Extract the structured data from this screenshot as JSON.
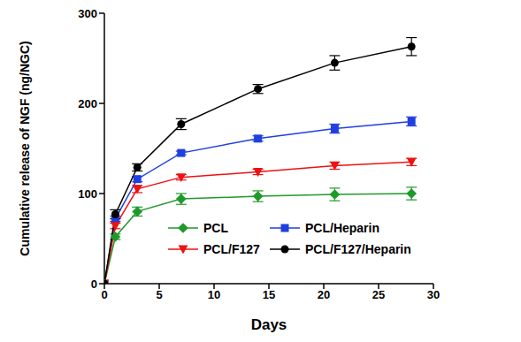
{
  "chart_data": {
    "type": "line",
    "x_label": "Days",
    "y_label": "Cumulative release of NGF (ng/NGC)",
    "x": [
      0,
      1,
      3,
      7,
      14,
      21,
      28
    ],
    "xlim": [
      0,
      30
    ],
    "xticks": [
      0,
      5,
      10,
      15,
      20,
      25,
      30
    ],
    "ylim": [
      0,
      300
    ],
    "yticks": [
      0,
      100,
      200,
      300
    ],
    "legend": "lower right",
    "series": [
      {
        "name": "PCL",
        "color": "#1f9a2a",
        "marker": "diamond",
        "values": [
          0,
          52,
          80,
          94,
          97,
          99,
          100
        ],
        "errors": [
          0,
          3,
          5,
          6,
          6,
          7,
          7
        ]
      },
      {
        "name": "PCL/Heparin",
        "color": "#1f3fe0",
        "marker": "square",
        "values": [
          0,
          72,
          116,
          145,
          161,
          172,
          180
        ],
        "errors": [
          0,
          3,
          3,
          2,
          3,
          5,
          5
        ]
      },
      {
        "name": "PCL/F127",
        "color": "#ee1111",
        "marker": "triangle-down",
        "values": [
          0,
          64,
          105,
          118,
          124,
          131,
          135
        ],
        "errors": [
          0,
          3,
          4,
          3,
          3,
          4,
          4
        ]
      },
      {
        "name": "PCL/F127/Heparin",
        "color": "#000000",
        "marker": "circle",
        "values": [
          0,
          77,
          129,
          177,
          216,
          245,
          263
        ],
        "errors": [
          0,
          5,
          4,
          6,
          5,
          8,
          10
        ]
      }
    ]
  }
}
